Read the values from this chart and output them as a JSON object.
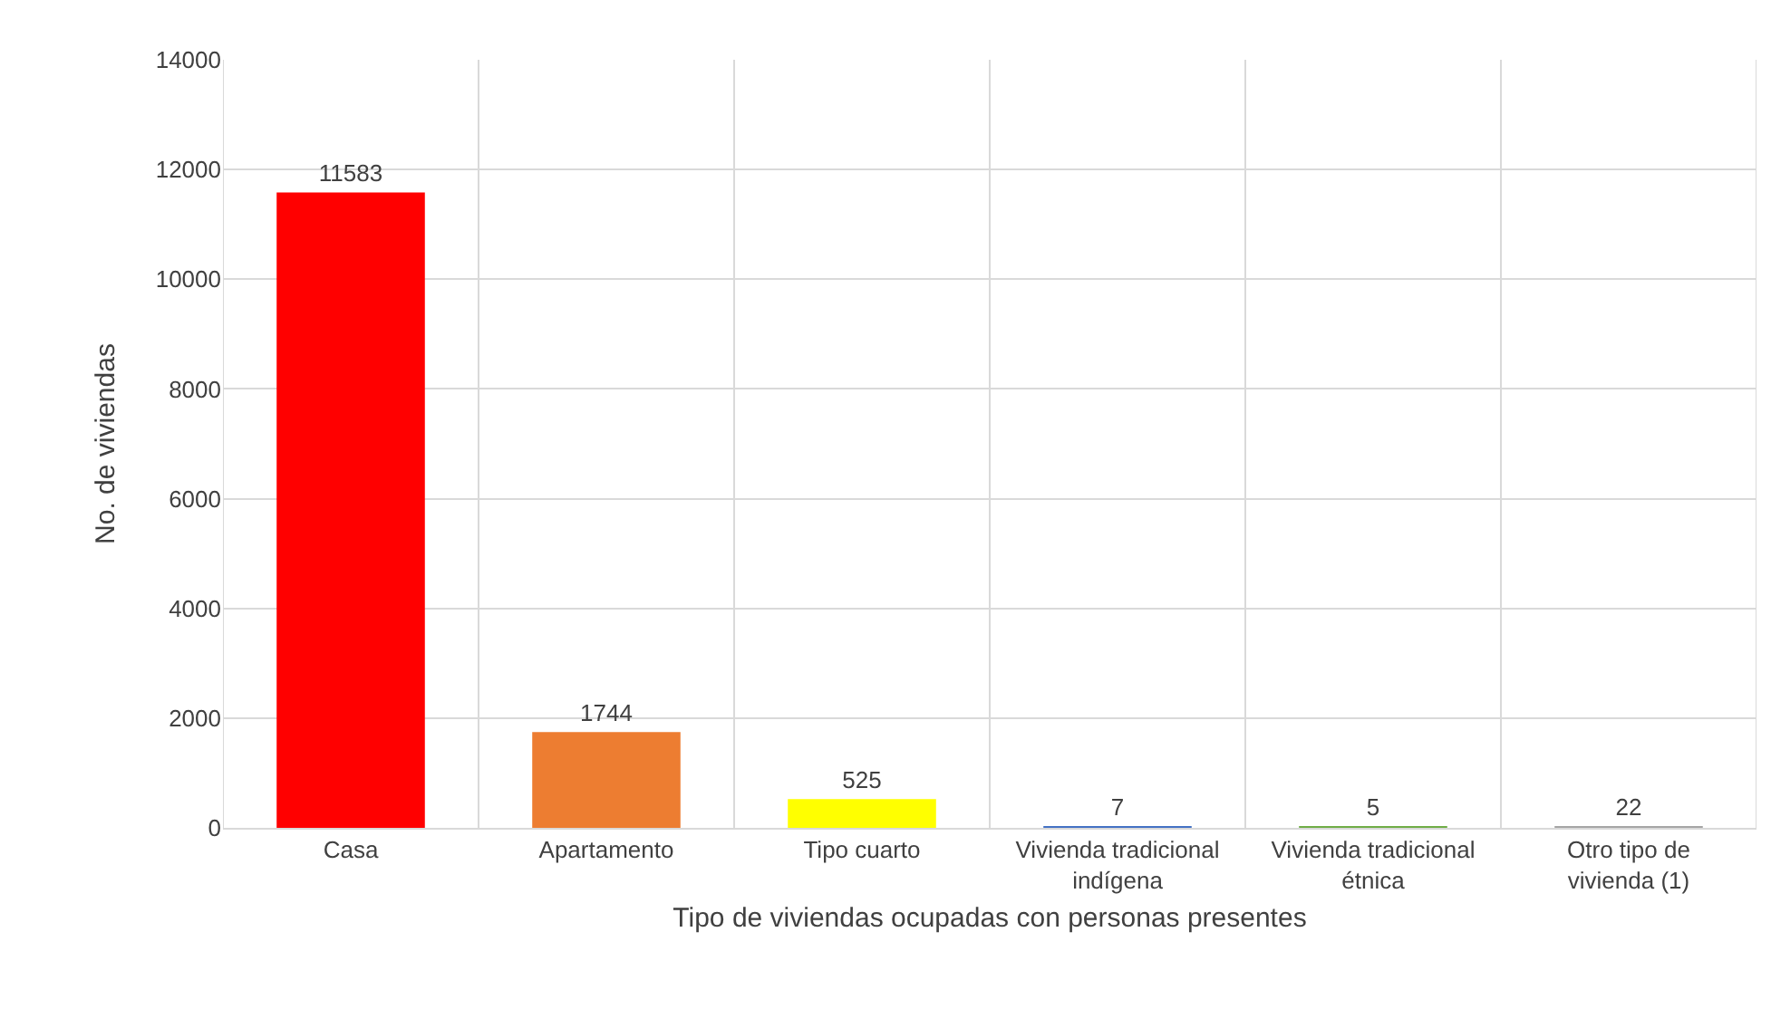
{
  "chart_data": {
    "type": "bar",
    "xlabel": "Tipo de viviendas ocupadas con personas presentes",
    "ylabel": "No. de viviendas",
    "categories": [
      "Casa",
      "Apartamento",
      "Tipo cuarto",
      "Vivienda tradicional indígena",
      "Vivienda tradicional étnica",
      "Otro tipo de vivienda (1)"
    ],
    "values": [
      11583,
      1744,
      525,
      7,
      5,
      22
    ],
    "colors": [
      "#ff0000",
      "#ed7d31",
      "#ffff00",
      "#4472c4",
      "#70ad47",
      "#a5a5a5"
    ],
    "ylim": [
      0,
      14000
    ],
    "yticks": [
      0,
      2000,
      4000,
      6000,
      8000,
      10000,
      12000,
      14000
    ],
    "grid": true,
    "data_labels": true
  }
}
